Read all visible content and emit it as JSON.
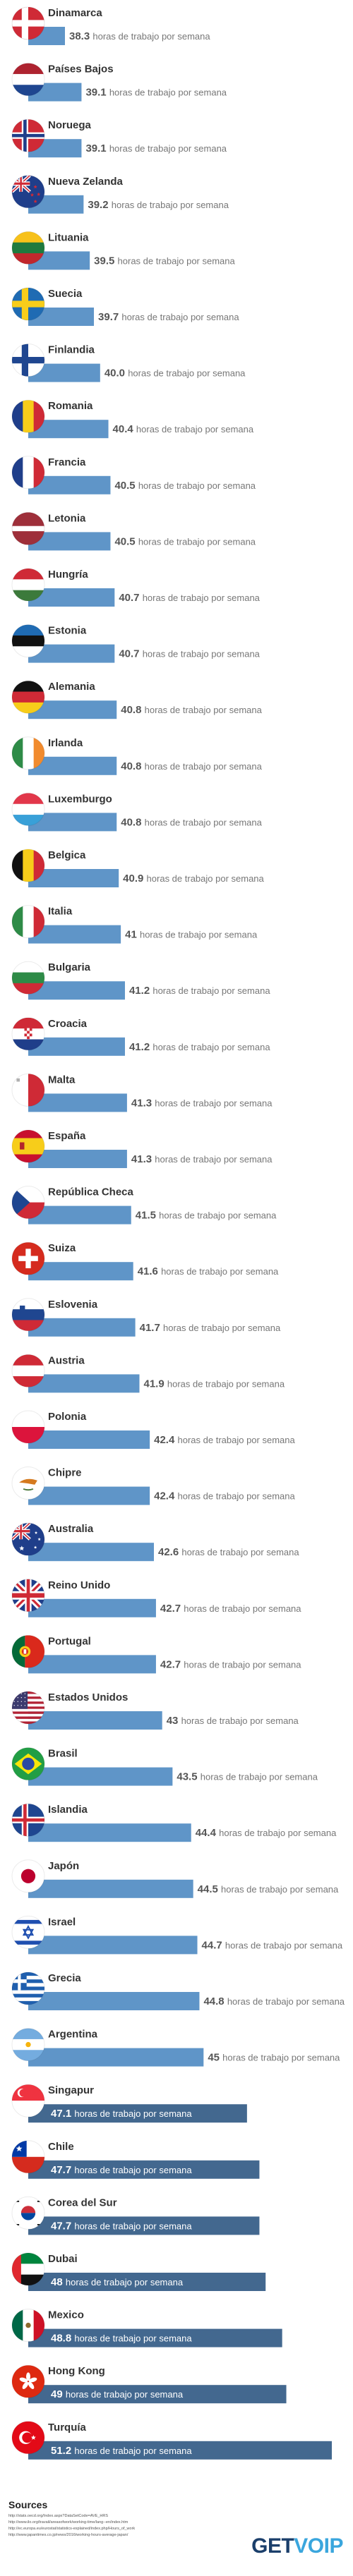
{
  "colors": {
    "bar_light": "#5f95c8",
    "bar_dark": "#43688f",
    "value_gray": "#777777",
    "value_white": "#ffffff"
  },
  "chart_data": {
    "type": "bar",
    "orientation": "horizontal",
    "unit_label": "horas de trabajo por semana",
    "categories": [
      "Dinamarca",
      "Países Bajos",
      "Noruega",
      "Nueva Zelanda",
      "Lituania",
      "Suecia",
      "Finlandia",
      "Romania",
      "Francia",
      "Letonia",
      "Hungría",
      "Estonia",
      "Alemania",
      "Irlanda",
      "Luxemburgo",
      "Belgica",
      "Italia",
      "Bulgaria",
      "Croacia",
      "Malta",
      "España",
      "República Checa",
      "Suiza",
      "Eslovenia",
      "Austria",
      "Polonia",
      "Chipre",
      "Australia",
      "Reino Unido",
      "Portugal",
      "Estados Unidos",
      "Brasil",
      "Islandia",
      "Japón",
      "Israel",
      "Grecia",
      "Argentina",
      "Singapur",
      "Chile",
      "Corea del Sur",
      "Dubai",
      "Mexico",
      "Hong Kong",
      "Turquía"
    ],
    "values": [
      38.3,
      39.1,
      39.1,
      39.2,
      39.5,
      39.7,
      40.0,
      40.4,
      40.5,
      40.5,
      40.7,
      40.7,
      40.8,
      40.8,
      40.8,
      40.9,
      41,
      41.2,
      41.2,
      41.3,
      41.3,
      41.5,
      41.6,
      41.7,
      41.9,
      42.4,
      42.4,
      42.6,
      42.7,
      42.7,
      43,
      43.5,
      44.4,
      44.5,
      44.7,
      44.8,
      45,
      47.1,
      47.7,
      47.7,
      48,
      48.8,
      49,
      51.2
    ],
    "value_labels": [
      "38.3",
      "39.1",
      "39.1",
      "39.2",
      "39.5",
      "39.7",
      "40.0",
      "40.4",
      "40.5",
      "40.5",
      "40.7",
      "40.7",
      "40.8",
      "40.8",
      "40.8",
      "40.9",
      "41",
      "41.2",
      "41.2",
      "41.3",
      "41.3",
      "41.5",
      "41.6",
      "41.7",
      "41.9",
      "42.4",
      "42.4",
      "42.6",
      "42.7",
      "42.7",
      "43",
      "43.5",
      "44.4",
      "44.5",
      "44.7",
      "44.8",
      "45",
      "47.1",
      "47.7",
      "47.7",
      "48",
      "48.8",
      "49",
      "51.2"
    ],
    "flags": [
      "denmark",
      "netherlands",
      "norway",
      "new-zealand",
      "lithuania",
      "sweden",
      "finland",
      "romania",
      "france",
      "latvia",
      "hungary",
      "estonia",
      "germany",
      "ireland",
      "luxembourg",
      "belgium",
      "italy",
      "bulgaria",
      "croatia",
      "malta",
      "spain",
      "czech-republic",
      "switzerland",
      "slovenia",
      "austria",
      "poland",
      "cyprus",
      "australia",
      "united-kingdom",
      "portugal",
      "united-states",
      "brazil",
      "iceland",
      "japan",
      "israel",
      "greece",
      "argentina",
      "singapore",
      "chile",
      "south-korea",
      "dubai-uae",
      "mexico",
      "hong-kong",
      "turkey"
    ]
  },
  "footer": {
    "sources_title": "Sources",
    "sources": [
      "http://stats.oecd.org/Index.aspx?DataSetCode=AVE_HRS",
      "http://www.ilo.org/travail/areasofwork/working-time/lang--en/index.htm",
      "http://ec.europa.eu/eurostat/statistics-explained/index.php/Hours_of_work",
      "http://www.japantimes.co.jp/news/2016/working-hours-average-japan/"
    ],
    "brand_part1": "GET",
    "brand_part2": "VOIP"
  }
}
